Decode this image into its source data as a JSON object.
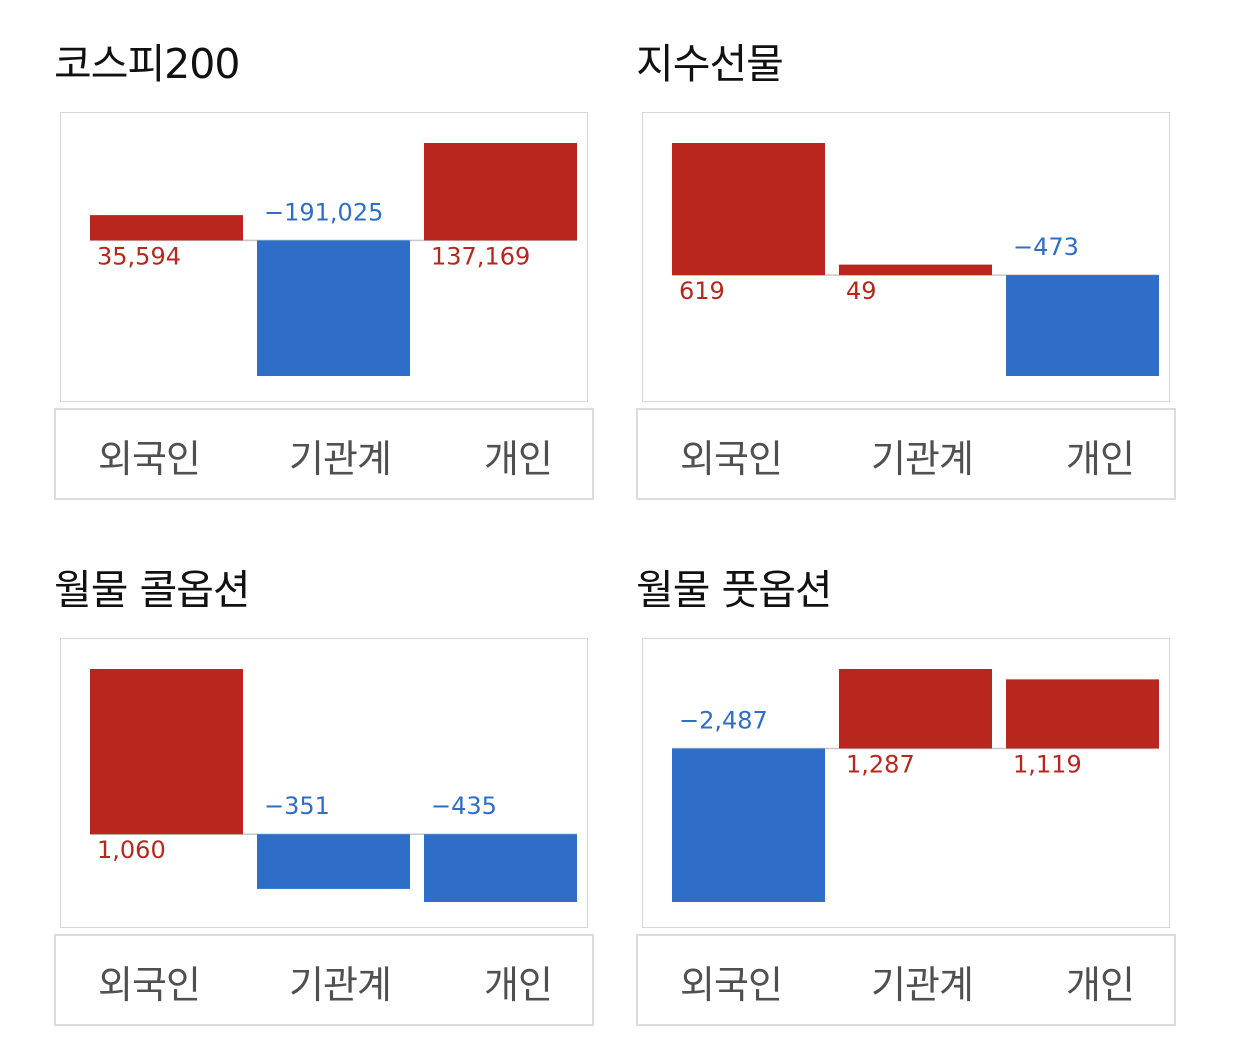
{
  "colors": {
    "positive": "#b9261e",
    "negative": "#2e6ec8",
    "baseline": "#c8c8c8"
  },
  "chart_data": [
    {
      "type": "bar",
      "title": "코스피200",
      "categories": [
        "외국인",
        "기관계",
        "개인"
      ],
      "values": [
        35594,
        -191025,
        137169
      ],
      "labels": [
        "35,594",
        "−191,025",
        "137,169"
      ]
    },
    {
      "type": "bar",
      "title": "지수선물",
      "categories": [
        "외국인",
        "기관계",
        "개인"
      ],
      "values": [
        619,
        49,
        -473
      ],
      "labels": [
        "619",
        "49",
        "−473"
      ]
    },
    {
      "type": "bar",
      "title": "월물 콜옵션",
      "categories": [
        "외국인",
        "기관계",
        "개인"
      ],
      "values": [
        1060,
        -351,
        -435
      ],
      "labels": [
        "1,060",
        "−351",
        "−435"
      ]
    },
    {
      "type": "bar",
      "title": "월물 풋옵션",
      "categories": [
        "외국인",
        "기관계",
        "개인"
      ],
      "values": [
        -2487,
        1287,
        1119
      ],
      "labels": [
        "−2,487",
        "1,287",
        "1,119"
      ]
    }
  ]
}
